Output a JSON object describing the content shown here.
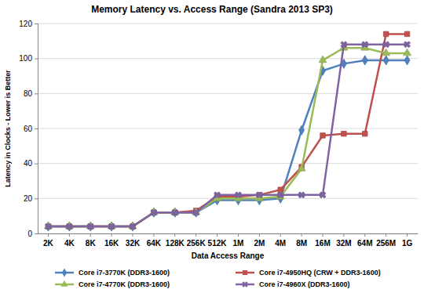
{
  "chart_data": {
    "type": "line",
    "title": "Memory Latency vs. Access Range (Sandra 2013 SP3)",
    "x_label": "Data Access Range",
    "y_label": "Latency in Clocks - Lower is Better",
    "categories": [
      "2K",
      "4K",
      "8K",
      "16K",
      "32K",
      "64K",
      "128K",
      "256K",
      "512K",
      "1M",
      "2M",
      "4M",
      "8M",
      "16M",
      "32M",
      "64M",
      "256M",
      "1G"
    ],
    "series": [
      {
        "name": "Core i7-3770K (DDR3-1600)",
        "color": "#4f81bd",
        "marker": "diamond",
        "values": [
          4,
          4,
          4,
          4,
          4,
          12,
          12,
          12,
          19,
          19,
          19,
          20,
          59,
          93,
          97,
          99,
          99,
          99
        ]
      },
      {
        "name": "Core i7-4950HQ (CRW + DDR3-1600)",
        "color": "#c0504d",
        "marker": "square",
        "values": [
          4,
          4,
          4,
          4,
          4,
          12,
          12,
          13,
          21,
          21,
          22,
          25,
          38,
          56,
          57,
          57,
          114,
          114
        ]
      },
      {
        "name": "Core i7-4770K (DDR3-1600)",
        "color": "#9bbb59",
        "marker": "triangle",
        "values": [
          4,
          4,
          4,
          4,
          4,
          12,
          12,
          12,
          20,
          20,
          20,
          21,
          37,
          99,
          106,
          106,
          103,
          103
        ]
      },
      {
        "name": "Core i7-4960X (DDR3-1600)",
        "color": "#8064a2",
        "marker": "x",
        "values": [
          4,
          4,
          4,
          4,
          4,
          12,
          12,
          12,
          22,
          22,
          22,
          22,
          22,
          22,
          108,
          108,
          108,
          108
        ]
      }
    ],
    "ylim": [
      0,
      120
    ],
    "yticks": [
      0,
      20,
      40,
      60,
      80,
      100,
      120
    ],
    "grid": true,
    "legend": "bottom"
  }
}
